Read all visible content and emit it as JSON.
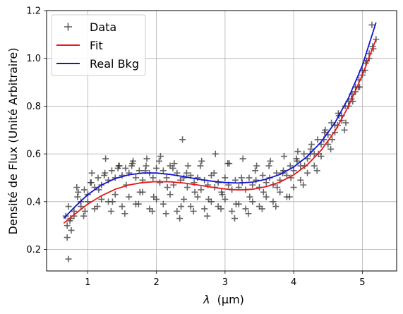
{
  "chart_data": {
    "type": "scatter",
    "xlabel": "(µm)",
    "xlabel_symbol": "λ",
    "ylabel": "Densité de Flux (Unité Arbitraire)",
    "xlim": [
      0.4,
      5.5
    ],
    "ylim": [
      0.11,
      1.2
    ],
    "x_ticks": [
      1,
      2,
      3,
      4,
      5
    ],
    "x_tick_labels": [
      "1",
      "2",
      "3",
      "4",
      "5"
    ],
    "y_ticks": [
      0.2,
      0.4,
      0.6,
      0.8,
      1.0,
      1.2
    ],
    "y_tick_labels": [
      "0.2",
      "0.4",
      "0.6",
      "0.8",
      "1.0",
      "1.2"
    ],
    "grid": true,
    "legend_position": "top-left",
    "legend": [
      "Data",
      "Fit",
      "Real Bkg"
    ],
    "colors": {
      "data": "#333333",
      "fit": "#e41a1c",
      "real_bkg": "#1414d2",
      "grid": "#b0b0b0"
    },
    "series": [
      {
        "name": "Data",
        "kind": "scatter",
        "marker": "plus",
        "x": [
          0.7,
          0.72,
          0.75,
          0.8,
          0.85,
          0.9,
          0.95,
          1.0,
          1.05,
          1.1,
          1.15,
          1.2,
          1.25,
          1.3,
          1.35,
          1.4,
          1.45,
          1.5,
          1.55,
          1.6,
          1.65,
          1.7,
          1.75,
          1.8,
          1.85,
          1.9,
          1.95,
          2.0,
          2.05,
          2.1,
          2.15,
          2.2,
          2.25,
          2.3,
          2.35,
          2.4,
          2.45,
          2.5,
          2.55,
          2.6,
          2.65,
          2.7,
          2.75,
          2.8,
          2.85,
          2.9,
          2.95,
          3.0,
          3.05,
          3.1,
          3.15,
          3.2,
          3.25,
          3.3,
          3.35,
          3.4,
          3.45,
          3.5,
          3.55,
          3.6,
          3.65,
          3.7,
          3.75,
          3.8,
          3.85,
          3.9,
          3.95,
          4.0,
          4.05,
          4.1,
          4.15,
          4.2,
          4.25,
          4.3,
          4.35,
          4.4,
          4.45,
          4.5,
          4.55,
          4.6,
          4.65,
          4.7,
          4.75,
          4.8,
          4.85,
          4.9,
          4.95,
          5.0,
          5.05,
          5.1,
          5.15,
          5.2,
          0.7,
          0.8,
          0.9,
          1.0,
          1.1,
          1.2,
          1.3,
          1.4,
          1.5,
          1.6,
          1.7,
          1.8,
          1.9,
          2.0,
          2.1,
          2.2,
          2.3,
          2.4,
          2.5,
          2.6,
          2.7,
          2.8,
          2.9,
          3.0,
          3.1,
          3.2,
          3.3,
          3.4,
          3.5,
          3.6,
          3.7,
          3.8,
          3.9,
          4.0,
          4.1,
          4.2,
          4.3,
          4.4,
          4.5,
          4.6,
          4.7,
          4.8,
          4.9,
          5.0,
          5.1,
          0.68,
          0.76,
          0.86,
          0.96,
          1.06,
          1.16,
          1.26,
          1.36,
          1.46,
          1.56,
          1.66,
          1.76,
          1.86,
          1.96,
          2.06,
          2.16,
          2.26,
          2.36,
          2.46,
          2.56,
          2.66,
          2.76,
          2.86,
          2.96,
          3.06,
          3.16,
          3.26,
          3.36,
          3.46,
          3.56,
          3.66,
          3.76,
          3.86,
          3.96,
          4.06,
          4.16,
          4.26,
          4.36,
          4.46,
          4.56,
          4.66,
          4.76,
          4.86,
          4.96,
          5.06,
          5.16,
          0.74,
          0.84,
          0.94,
          1.04,
          1.14,
          1.24,
          1.34,
          1.44,
          1.54,
          1.64,
          1.74,
          1.84,
          1.94,
          2.04,
          2.14,
          2.24,
          2.34,
          2.44,
          2.54,
          2.64,
          2.74,
          2.84,
          2.94,
          3.04,
          3.14,
          3.24,
          3.34,
          3.44,
          3.54,
          3.64,
          3.74,
          3.84,
          3.94,
          4.04,
          4.14,
          4.24,
          4.34,
          4.44,
          4.54,
          4.64,
          4.74,
          4.84,
          4.94,
          5.04,
          5.14,
          0.72,
          2.38
        ],
        "y": [
          0.25,
          0.38,
          0.33,
          0.36,
          0.42,
          0.4,
          0.45,
          0.43,
          0.48,
          0.46,
          0.5,
          0.47,
          0.52,
          0.49,
          0.53,
          0.5,
          0.55,
          0.51,
          0.54,
          0.52,
          0.56,
          0.5,
          0.53,
          0.49,
          0.55,
          0.52,
          0.5,
          0.54,
          0.48,
          0.53,
          0.5,
          0.55,
          0.47,
          0.52,
          0.49,
          0.5,
          0.46,
          0.51,
          0.48,
          0.5,
          0.45,
          0.49,
          0.47,
          0.51,
          0.46,
          0.48,
          0.44,
          0.5,
          0.47,
          0.45,
          0.49,
          0.46,
          0.48,
          0.45,
          0.5,
          0.47,
          0.49,
          0.46,
          0.51,
          0.48,
          0.5,
          0.47,
          0.52,
          0.49,
          0.53,
          0.51,
          0.55,
          0.53,
          0.57,
          0.55,
          0.6,
          0.58,
          0.62,
          0.6,
          0.66,
          0.64,
          0.69,
          0.68,
          0.73,
          0.72,
          0.77,
          0.76,
          0.8,
          0.82,
          0.85,
          0.88,
          0.91,
          0.95,
          0.98,
          1.02,
          1.05,
          1.08,
          0.3,
          0.34,
          0.38,
          0.4,
          0.37,
          0.41,
          0.4,
          0.43,
          0.38,
          0.42,
          0.39,
          0.44,
          0.37,
          0.41,
          0.39,
          0.43,
          0.36,
          0.41,
          0.38,
          0.42,
          0.37,
          0.4,
          0.38,
          0.41,
          0.36,
          0.39,
          0.37,
          0.4,
          0.38,
          0.42,
          0.4,
          0.44,
          0.42,
          0.46,
          0.49,
          0.52,
          0.55,
          0.59,
          0.64,
          0.69,
          0.74,
          0.8,
          0.86,
          0.93,
          1.0,
          0.34,
          0.28,
          0.44,
          0.36,
          0.52,
          0.45,
          0.58,
          0.4,
          0.55,
          0.47,
          0.57,
          0.44,
          0.58,
          0.42,
          0.59,
          0.46,
          0.56,
          0.38,
          0.55,
          0.44,
          0.57,
          0.41,
          0.6,
          0.43,
          0.56,
          0.39,
          0.58,
          0.42,
          0.55,
          0.44,
          0.57,
          0.46,
          0.59,
          0.5,
          0.61,
          0.55,
          0.64,
          0.6,
          0.7,
          0.66,
          0.76,
          0.73,
          0.82,
          0.88,
          0.99,
          1.04,
          0.32,
          0.46,
          0.34,
          0.48,
          0.38,
          0.51,
          0.36,
          0.54,
          0.35,
          0.55,
          0.39,
          0.53,
          0.36,
          0.57,
          0.35,
          0.54,
          0.33,
          0.52,
          0.36,
          0.55,
          0.34,
          0.52,
          0.37,
          0.56,
          0.33,
          0.5,
          0.35,
          0.53,
          0.37,
          0.55,
          0.38,
          0.52,
          0.42,
          0.58,
          0.47,
          0.6,
          0.53,
          0.66,
          0.62,
          0.72,
          0.7,
          0.83,
          0.88,
          0.95,
          1.14,
          0.16,
          0.66
        ]
      },
      {
        "name": "Fit",
        "kind": "line",
        "x": [
          0.65,
          0.8,
          1.0,
          1.2,
          1.4,
          1.6,
          1.8,
          2.0,
          2.2,
          2.4,
          2.6,
          2.8,
          3.0,
          3.2,
          3.4,
          3.6,
          3.8,
          4.0,
          4.2,
          4.4,
          4.6,
          4.8,
          5.0,
          5.2
        ],
        "y": [
          0.31,
          0.345,
          0.39,
          0.425,
          0.452,
          0.47,
          0.48,
          0.484,
          0.483,
          0.478,
          0.47,
          0.461,
          0.453,
          0.449,
          0.452,
          0.463,
          0.482,
          0.512,
          0.555,
          0.615,
          0.695,
          0.8,
          0.93,
          1.08
        ]
      },
      {
        "name": "Real Bkg",
        "kind": "line",
        "x": [
          0.65,
          0.8,
          1.0,
          1.2,
          1.4,
          1.6,
          1.8,
          2.0,
          2.2,
          2.4,
          2.6,
          2.8,
          3.0,
          3.2,
          3.4,
          3.6,
          3.8,
          4.0,
          4.2,
          4.4,
          4.6,
          4.8,
          5.0,
          5.2
        ],
        "y": [
          0.33,
          0.375,
          0.43,
          0.47,
          0.497,
          0.513,
          0.52,
          0.52,
          0.514,
          0.505,
          0.495,
          0.486,
          0.48,
          0.478,
          0.482,
          0.494,
          0.514,
          0.545,
          0.59,
          0.65,
          0.73,
          0.835,
          0.97,
          1.15
        ]
      }
    ]
  }
}
